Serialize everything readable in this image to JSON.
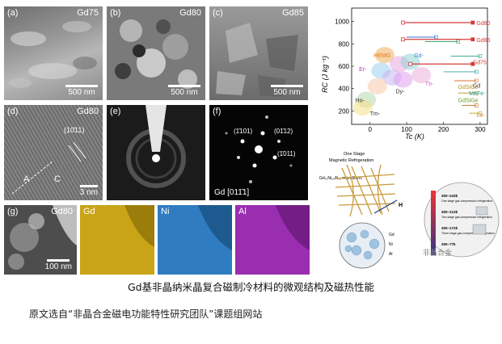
{
  "panels": {
    "a": {
      "label": "(a)",
      "tag": "Gd75",
      "scale": "500 nm"
    },
    "b": {
      "label": "(b)",
      "tag": "Gd80",
      "scale": "500 nm"
    },
    "c": {
      "label": "(c)",
      "tag": "Gd85",
      "scale": "500 nm"
    },
    "d": {
      "label": "(d)",
      "tag": "Gd80",
      "scale": "3 nm",
      "plane": "(10̄11)",
      "markA": "A",
      "markC": "C"
    },
    "e": {
      "label": "(e)"
    },
    "f": {
      "label": "(f)",
      "zone": "Gd [011̄1]",
      "spot1": "(1̄101)",
      "spot2": "(01̄12)",
      "spot3": "(1̄011)"
    },
    "g": {
      "label": "(g)",
      "tag": "Gd80",
      "scale": "100 nm"
    },
    "maps": {
      "gd": "Gd",
      "ni": "Ni",
      "al": "Al"
    }
  },
  "colors": {
    "gd_map": "#c9a416",
    "ni_map": "#2f7cc0",
    "al_map": "#9a2eb0"
  },
  "chart_data": {
    "type": "scatter",
    "xlabel": "Tc (K)",
    "ylabel": "RC (J kg⁻¹)",
    "xlim": [
      -50,
      320
    ],
    "ylim": [
      80,
      1120
    ],
    "xticks": [
      0,
      100,
      200,
      300
    ],
    "yticks": [
      200,
      400,
      600,
      800,
      1000
    ],
    "labels": [
      "Gd80",
      "Gd85",
      "Gd75",
      "HEMG",
      "Gd-",
      "Er-",
      "Tb-",
      "Dy-",
      "Ho-",
      "Tm-",
      "Gd",
      "MnFe-",
      "GdSiGe",
      "GdSiGe",
      "La-"
    ],
    "series": [
      {
        "name": "Gd80",
        "color": "#d63a3a",
        "range": [
          [
            90,
            990
          ],
          [
            280,
            990
          ]
        ]
      },
      {
        "name": "Gd85",
        "color": "#d63a3a",
        "range": [
          [
            90,
            840
          ],
          [
            280,
            840
          ]
        ]
      },
      {
        "name": "Gd75",
        "color": "#d63a3a",
        "range": [
          [
            110,
            620
          ],
          [
            280,
            620
          ]
        ]
      }
    ]
  },
  "schematic": {
    "title1": "One Stage",
    "title2": "Magnetic Refrigeration",
    "material": "Gd₇₅Ni₁₅Al₁₀ microfibers",
    "h": "H",
    "gd": "Gd",
    "ni": "Ni",
    "al": "Al",
    "stage1": "300~243k",
    "stage1b": "One stage gas compression refrigeration",
    "stage2": "300~213k",
    "stage2b": "Two stage gas compression refrigeration",
    "stage3": "300~172k",
    "stage3b": "Three stage gas compression refrigeration",
    "stage4": "300~77k",
    "watermark": "非晶合金"
  },
  "caption": "Gd基非晶纳米晶复合磁制冷材料的微观结构及磁热性能",
  "source": "原文选自“非晶合金磁电功能特性研究团队”课题组网站"
}
